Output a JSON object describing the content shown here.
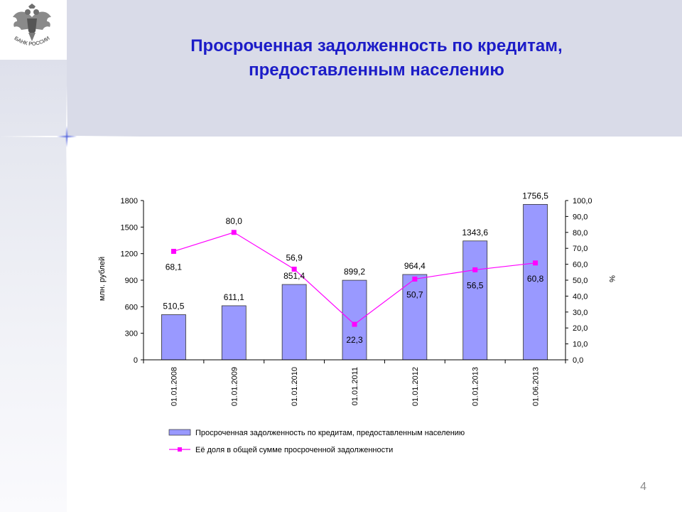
{
  "slide": {
    "title_line1": "Просроченная задолженность по кредитам,",
    "title_line2": "предоставленным населению",
    "page_number": "4",
    "logo_text": "БАНК РОССИИ"
  },
  "colors": {
    "title": "#1c1cc8",
    "bar_fill": "#9999ff",
    "line": "#ff00ff"
  },
  "chart_data": {
    "type": "bar",
    "categories": [
      "01.01.2008",
      "01.01.2009",
      "01.01.2010",
      "01.01.2011",
      "01.01.2012",
      "01.01.2013",
      "01.06.2013"
    ],
    "series": [
      {
        "name": "Просроченная задолженность по кредитам, предоставленным населению",
        "type": "bar",
        "axis": "left",
        "values": [
          510.5,
          611.1,
          851.4,
          899.2,
          964.4,
          1343.6,
          1756.5
        ],
        "labels": [
          "510,5",
          "611,1",
          "851,4",
          "899,2",
          "964,4",
          "1343,6",
          "1756,5"
        ]
      },
      {
        "name": "Её доля в общей сумме просроченной задолженности",
        "type": "line",
        "axis": "right",
        "values": [
          68.1,
          80.0,
          56.9,
          22.3,
          50.7,
          56.5,
          60.8
        ],
        "labels": [
          "68,1",
          "80,0",
          "56,9",
          "22,3",
          "50,7",
          "56,5",
          "60,8"
        ]
      }
    ],
    "y_left": {
      "label": "млн. рублей",
      "ylim": [
        0,
        1800
      ],
      "ticks": [
        "0",
        "300",
        "600",
        "900",
        "1200",
        "1500",
        "1800"
      ]
    },
    "y_right": {
      "label": "%",
      "ylim": [
        0,
        100
      ],
      "ticks": [
        "0,0",
        "10,0",
        "20,0",
        "30,0",
        "40,0",
        "50,0",
        "60,0",
        "70,0",
        "80,0",
        "90,0",
        "100,0"
      ]
    },
    "grid": false,
    "legend_position": "bottom"
  }
}
